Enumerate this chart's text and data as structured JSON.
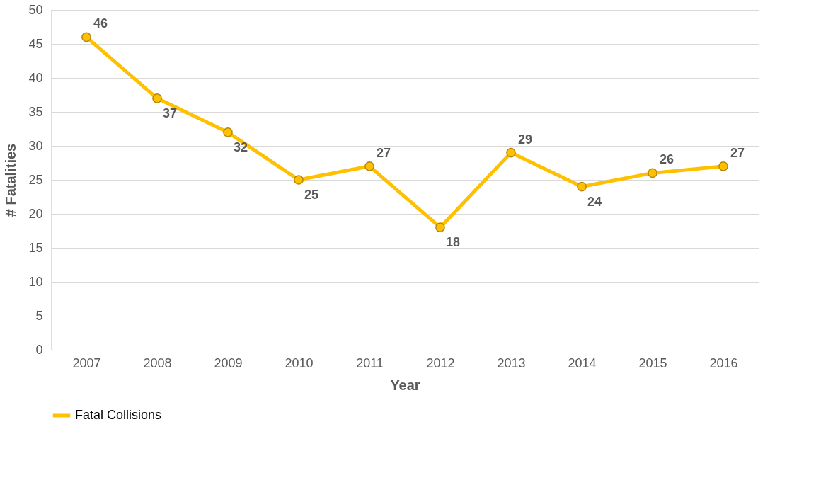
{
  "chart_data": {
    "type": "line",
    "xlabel": "Year",
    "ylabel": "# Fatalities",
    "categories": [
      "2007",
      "2008",
      "2009",
      "2010",
      "2011",
      "2012",
      "2013",
      "2014",
      "2015",
      "2016"
    ],
    "series": [
      {
        "name": "Fatal Collisions",
        "color": "#ffc000",
        "values": [
          46,
          37,
          32,
          25,
          27,
          18,
          29,
          24,
          26,
          27
        ]
      }
    ],
    "ylim": [
      0,
      50
    ],
    "yticks": [
      0,
      5,
      10,
      15,
      20,
      25,
      30,
      35,
      40,
      45,
      50
    ],
    "grid": "y",
    "legend": "bottom",
    "marker": "circle",
    "line_style": "solid",
    "data_labels": true
  }
}
